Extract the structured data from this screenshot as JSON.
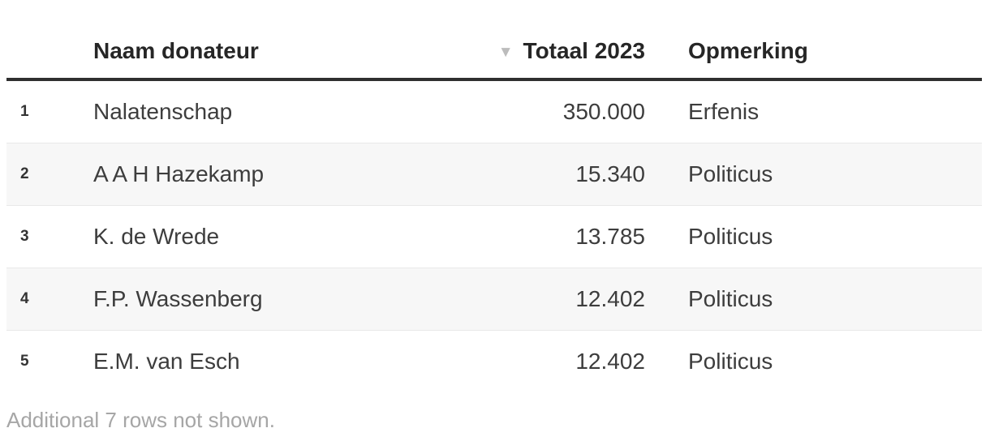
{
  "table": {
    "columns": {
      "index_label": "",
      "name_label": "Naam donateur",
      "total_label": "Totaal 2023",
      "remark_label": "Opmerking",
      "sort_icon_glyph": "▼"
    },
    "rows": [
      {
        "index": "1",
        "name": "Nalatenschap",
        "total": "350.000",
        "remark": "Erfenis"
      },
      {
        "index": "2",
        "name": "A A H Hazekamp",
        "total": "15.340",
        "remark": "Politicus"
      },
      {
        "index": "3",
        "name": "K. de Wrede",
        "total": "13.785",
        "remark": "Politicus"
      },
      {
        "index": "4",
        "name": "F.P. Wassenberg",
        "total": "12.402",
        "remark": "Politicus"
      },
      {
        "index": "5",
        "name": "E.M. van Esch",
        "total": "12.402",
        "remark": "Politicus"
      }
    ],
    "footer_note": "Additional 7 rows not shown."
  },
  "chart_data": {
    "type": "table",
    "columns": [
      "",
      "Naam donateur",
      "Totaal 2023",
      "Opmerking"
    ],
    "rows": [
      [
        "1",
        "Nalatenschap",
        "350.000",
        "Erfenis"
      ],
      [
        "2",
        "A A H Hazekamp",
        "15.340",
        "Politicus"
      ],
      [
        "3",
        "K. de Wrede",
        "13.785",
        "Politicus"
      ],
      [
        "4",
        "F.P. Wassenberg",
        "12.402",
        "Politicus"
      ],
      [
        "5",
        "E.M. van Esch",
        "12.402",
        "Politicus"
      ]
    ],
    "totaal_2023_numeric": [
      350000,
      15340,
      13785,
      12402,
      12402
    ],
    "sort": {
      "column": "Totaal 2023",
      "direction": "descending"
    },
    "footnote": "Additional 7 rows not shown.",
    "layout": {
      "zebra_stripes": true,
      "striped_rows": [
        2,
        4
      ]
    }
  },
  "colors": {
    "header_text": "#262626",
    "header_rule": "#2f2f2f",
    "body_text": "#3d3d3d",
    "stripe_background": "#f7f7f7",
    "row_divider": "#e9e9e9",
    "sort_icon": "#bcbcbc",
    "footer_text": "#a6a6a6",
    "background": "#ffffff"
  }
}
